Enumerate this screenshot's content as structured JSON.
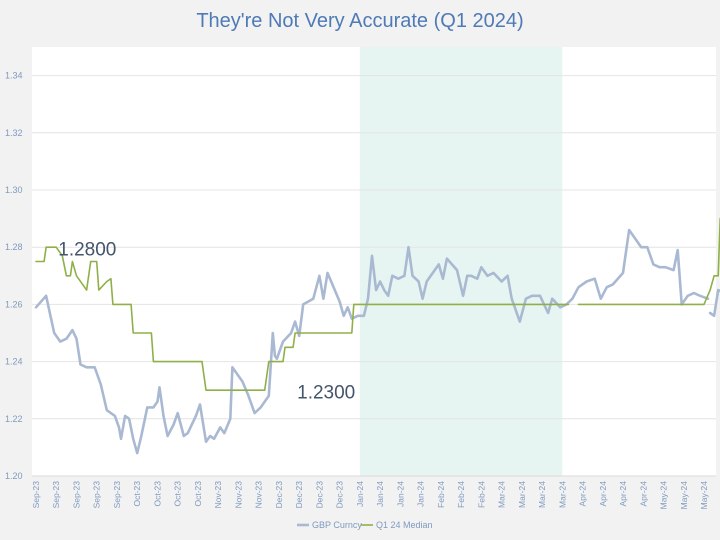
{
  "chart_data": {
    "type": "line",
    "title": "They're Not Very Accurate (Q1 2024)",
    "xlabel": "",
    "ylabel": "",
    "ylim": [
      1.2,
      1.35
    ],
    "yticks": [
      "1.20",
      "1.22",
      "1.24",
      "1.26",
      "1.28",
      "1.30",
      "1.32",
      "1.34"
    ],
    "grid": true,
    "legend_position": "bottom",
    "x_tick_labels": [
      "Sep-23",
      "Sep-23",
      "Sep-23",
      "Sep-23",
      "Sep-23",
      "Oct-23",
      "Oct-23",
      "Oct-23",
      "Oct-23",
      "Nov-23",
      "Nov-23",
      "Nov-23",
      "Dec-23",
      "Dec-23",
      "Dec-23",
      "Dec-23",
      "Jan-24",
      "Jan-24",
      "Jan-24",
      "Jan-24",
      "Feb-24",
      "Feb-24",
      "Feb-24",
      "Mar-24",
      "Mar-24",
      "Mar-24",
      "Mar-24",
      "Apr-24",
      "Apr-24",
      "Apr-24",
      "Apr-24",
      "May-24",
      "May-24",
      "May-24"
    ],
    "shaded_region": {
      "from_tick": 16,
      "to_tick": 26,
      "color": "#e6f5f1"
    },
    "annotations": [
      {
        "text": "1.2800",
        "x_tick": 1.1,
        "y": 1.2795
      },
      {
        "text": "1.2300",
        "x_tick": 12.9,
        "y": 1.2295
      }
    ],
    "series": [
      {
        "name": "GBP Curncy",
        "color": "#aab9d2",
        "points": [
          [
            0,
            1.259
          ],
          [
            0.5,
            1.263
          ],
          [
            0.9,
            1.25
          ],
          [
            1.2,
            1.247
          ],
          [
            1.5,
            1.248
          ],
          [
            1.8,
            1.251
          ],
          [
            2.0,
            1.248
          ],
          [
            2.2,
            1.239
          ],
          [
            2.5,
            1.238
          ],
          [
            2.9,
            1.238
          ],
          [
            3.2,
            1.232
          ],
          [
            3.5,
            1.223
          ],
          [
            3.9,
            1.221
          ],
          [
            4.1,
            1.217
          ],
          [
            4.2,
            1.213
          ],
          [
            4.4,
            1.221
          ],
          [
            4.6,
            1.22
          ],
          [
            4.8,
            1.213
          ],
          [
            5.0,
            1.208
          ],
          [
            5.2,
            1.214
          ],
          [
            5.5,
            1.224
          ],
          [
            5.8,
            1.224
          ],
          [
            6.0,
            1.226
          ],
          [
            6.1,
            1.231
          ],
          [
            6.3,
            1.221
          ],
          [
            6.5,
            1.214
          ],
          [
            6.8,
            1.218
          ],
          [
            7.0,
            1.222
          ],
          [
            7.3,
            1.214
          ],
          [
            7.5,
            1.215
          ],
          [
            7.9,
            1.221
          ],
          [
            8.1,
            1.225
          ],
          [
            8.4,
            1.212
          ],
          [
            8.6,
            1.214
          ],
          [
            8.8,
            1.213
          ],
          [
            9.1,
            1.217
          ],
          [
            9.3,
            1.215
          ],
          [
            9.6,
            1.22
          ],
          [
            9.7,
            1.238
          ],
          [
            9.9,
            1.236
          ],
          [
            10.2,
            1.233
          ],
          [
            10.5,
            1.228
          ],
          [
            10.8,
            1.222
          ],
          [
            11.1,
            1.224
          ],
          [
            11.3,
            1.226
          ],
          [
            11.5,
            1.228
          ],
          [
            11.7,
            1.25
          ],
          [
            11.8,
            1.242
          ],
          [
            11.9,
            1.241
          ],
          [
            12.2,
            1.247
          ],
          [
            12.6,
            1.25
          ],
          [
            12.8,
            1.254
          ],
          [
            13.0,
            1.249
          ],
          [
            13.2,
            1.26
          ],
          [
            13.7,
            1.262
          ],
          [
            14.0,
            1.27
          ],
          [
            14.2,
            1.262
          ],
          [
            14.4,
            1.271
          ],
          [
            14.7,
            1.266
          ],
          [
            15.0,
            1.261
          ],
          [
            15.2,
            1.256
          ],
          [
            15.4,
            1.259
          ],
          [
            15.6,
            1.255
          ],
          [
            15.9,
            1.256
          ],
          [
            16.2,
            1.256
          ],
          [
            16.4,
            1.262
          ],
          [
            16.6,
            1.277
          ],
          [
            16.8,
            1.265
          ],
          [
            17.0,
            1.268
          ],
          [
            17.2,
            1.265
          ],
          [
            17.4,
            1.263
          ],
          [
            17.6,
            1.27
          ],
          [
            17.9,
            1.269
          ],
          [
            18.2,
            1.27
          ],
          [
            18.4,
            1.28
          ],
          [
            18.6,
            1.27
          ],
          [
            18.9,
            1.268
          ],
          [
            19.1,
            1.262
          ],
          [
            19.3,
            1.268
          ],
          [
            19.6,
            1.271
          ],
          [
            19.9,
            1.274
          ],
          [
            20.1,
            1.269
          ],
          [
            20.3,
            1.276
          ],
          [
            20.8,
            1.272
          ],
          [
            21.1,
            1.263
          ],
          [
            21.3,
            1.27
          ],
          [
            21.5,
            1.27
          ],
          [
            21.8,
            1.269
          ],
          [
            22.0,
            1.273
          ],
          [
            22.3,
            1.27
          ],
          [
            22.6,
            1.271
          ],
          [
            23.0,
            1.268
          ],
          [
            23.3,
            1.27
          ],
          [
            23.5,
            1.262
          ],
          [
            23.9,
            1.254
          ],
          [
            24.2,
            1.262
          ],
          [
            24.5,
            1.263
          ],
          [
            24.9,
            1.263
          ],
          [
            25.3,
            1.257
          ],
          [
            25.5,
            1.262
          ],
          [
            25.9,
            1.259
          ],
          [
            26.2,
            1.26
          ],
          [
            26.5,
            1.262
          ],
          [
            26.8,
            1.266
          ],
          [
            27.2,
            1.268
          ],
          [
            27.6,
            1.269
          ],
          [
            27.9,
            1.262
          ],
          [
            28.2,
            1.266
          ],
          [
            28.5,
            1.267
          ],
          [
            29.0,
            1.271
          ],
          [
            29.3,
            1.286
          ],
          [
            29.6,
            1.283
          ],
          [
            29.9,
            1.28
          ],
          [
            30.2,
            1.28
          ],
          [
            30.5,
            1.274
          ],
          [
            30.8,
            1.273
          ],
          [
            31.1,
            1.273
          ],
          [
            31.5,
            1.272
          ],
          [
            31.7,
            1.279
          ],
          [
            31.9,
            1.26
          ],
          [
            32.2,
            1.263
          ],
          [
            32.5,
            1.264
          ],
          [
            32.8,
            1.263
          ],
          [
            33.2,
            1.262
          ]
        ]
      },
      {
        "name": "GBP Curncy",
        "color": "#aab9d2",
        "points": [
          [
            33.3,
            1.257
          ],
          [
            33.5,
            1.256
          ],
          [
            33.7,
            1.265
          ],
          [
            34.0,
            1.264
          ],
          [
            34.3,
            1.265
          ],
          [
            34.6,
            1.266
          ],
          [
            34.8,
            1.268
          ],
          [
            35.0,
            1.255
          ],
          [
            35.2,
            1.255
          ],
          [
            35.4,
            1.246
          ],
          [
            35.7,
            1.245
          ],
          [
            36.0,
            1.245
          ],
          [
            36.2,
            1.242
          ],
          [
            36.4,
            1.246
          ],
          [
            36.7,
            1.237
          ],
          [
            37.0,
            1.236
          ],
          [
            37.3,
            1.235
          ],
          [
            37.5,
            1.245
          ],
          [
            37.7,
            1.245
          ],
          [
            37.9,
            1.251
          ],
          [
            38.1,
            1.249
          ],
          [
            38.5,
            1.256
          ],
          [
            38.7,
            1.249
          ],
          [
            38.9,
            1.252
          ],
          [
            39.2,
            1.254
          ],
          [
            39.5,
            1.255
          ],
          [
            39.9,
            1.256
          ],
          [
            40.2,
            1.252
          ],
          [
            40.4,
            1.25
          ],
          [
            40.6,
            1.253
          ],
          [
            40.9,
            1.254
          ],
          [
            41.2,
            1.256
          ],
          [
            41.5,
            1.261
          ],
          [
            41.7,
            1.268
          ],
          [
            41.9,
            1.267
          ],
          [
            42.1,
            1.27
          ],
          [
            42.5,
            1.27
          ],
          [
            42.9,
            1.271
          ],
          [
            43.1,
            1.272
          ],
          [
            43.2,
            1.27
          ],
          [
            43.4,
            1.275
          ],
          [
            43.7,
            1.276
          ],
          [
            43.9,
            1.277
          ],
          [
            44.1,
            1.276
          ],
          [
            44.3,
            1.27
          ],
          [
            44.5,
            1.274
          ]
        ]
      },
      {
        "name": "Q1 24 Median",
        "color": "#8fb048",
        "points": [
          [
            0,
            1.275
          ],
          [
            0.4,
            1.275
          ],
          [
            0.5,
            1.28
          ],
          [
            1.0,
            1.28
          ],
          [
            1.3,
            1.277
          ],
          [
            1.5,
            1.27
          ],
          [
            1.7,
            1.27
          ],
          [
            1.8,
            1.275
          ],
          [
            2.0,
            1.27
          ],
          [
            2.5,
            1.265
          ],
          [
            2.7,
            1.275
          ],
          [
            3.0,
            1.275
          ],
          [
            3.1,
            1.265
          ],
          [
            3.5,
            1.268
          ],
          [
            3.7,
            1.269
          ],
          [
            3.8,
            1.26
          ],
          [
            4.2,
            1.26
          ],
          [
            4.7,
            1.26
          ],
          [
            4.8,
            1.25
          ],
          [
            5.7,
            1.25
          ],
          [
            5.8,
            1.24
          ],
          [
            8.2,
            1.24
          ],
          [
            8.4,
            1.23
          ],
          [
            10.5,
            1.23
          ],
          [
            10.7,
            1.23
          ],
          [
            11.3,
            1.23
          ],
          [
            11.5,
            1.24
          ],
          [
            12.2,
            1.24
          ],
          [
            12.3,
            1.245
          ],
          [
            12.7,
            1.245
          ],
          [
            12.8,
            1.25
          ],
          [
            14.5,
            1.25
          ],
          [
            14.6,
            1.25
          ],
          [
            15.6,
            1.25
          ],
          [
            15.7,
            1.26
          ],
          [
            17.0,
            1.26
          ],
          [
            18.0,
            1.26
          ],
          [
            19.5,
            1.26
          ],
          [
            21.0,
            1.26
          ],
          [
            22.5,
            1.26
          ],
          [
            23.5,
            1.26
          ],
          [
            24.2,
            1.26
          ],
          [
            25.0,
            1.26
          ],
          [
            25.5,
            1.26
          ],
          [
            26.0,
            1.26
          ],
          [
            26.3,
            1.26
          ]
        ]
      },
      {
        "name": "Q1 24 Median",
        "color": "#8fb048",
        "points": [
          [
            26.8,
            1.26
          ],
          [
            28.0,
            1.26
          ],
          [
            29.5,
            1.26
          ],
          [
            31.0,
            1.26
          ],
          [
            31.8,
            1.26
          ],
          [
            32.5,
            1.26
          ],
          [
            33.0,
            1.26
          ],
          [
            33.3,
            1.265
          ],
          [
            33.5,
            1.27
          ],
          [
            33.7,
            1.27
          ],
          [
            33.8,
            1.29
          ]
        ]
      }
    ],
    "legend": [
      "GBP Curncy",
      "Q1 24 Median"
    ]
  }
}
